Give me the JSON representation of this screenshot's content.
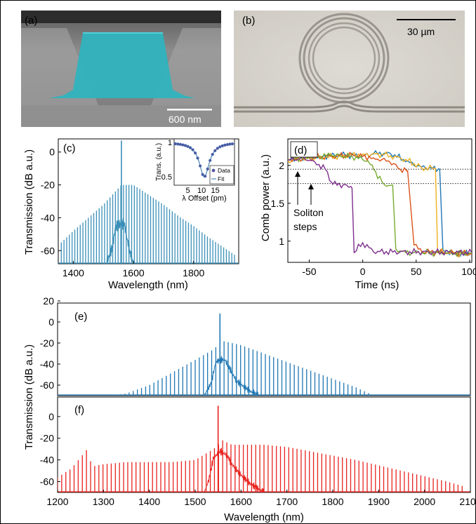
{
  "panels": {
    "a": {
      "letter": "(a)",
      "scalebar": "600 nm"
    },
    "b": {
      "letter": "(b)",
      "scalebar": "30 µm"
    },
    "c": {
      "letter": "(c)"
    },
    "d": {
      "letter": "(d)",
      "annotation": "Soliton\nsteps"
    },
    "e": {
      "letter": "(e)"
    },
    "f": {
      "letter": "(f)"
    }
  },
  "colors": {
    "teal": "#3a8fb8",
    "red": "#e8231f",
    "blue": "#1f77b4",
    "orange": "#d9541a",
    "yellow": "#edb120",
    "purple": "#7e2f8e",
    "green": "#77ac30",
    "cyan": "#1fb5c4"
  },
  "chart_data": [
    {
      "type": "line",
      "panel": "c",
      "xlabel": "Wavelength (nm)",
      "ylabel": "Transmission (dB a.u.)",
      "xlim": [
        1350,
        1950
      ],
      "ylim": [
        -68,
        8
      ],
      "xticks": [
        1400,
        1600,
        1800
      ],
      "yticks": [
        0,
        -20,
        -40,
        -60
      ],
      "comb": {
        "start": 1360,
        "end": 1940,
        "spacing": 9,
        "pump": 1560,
        "pump_peak": 7,
        "floor": -68
      },
      "envelope": [
        [
          1360,
          -55
        ],
        [
          1400,
          -48
        ],
        [
          1450,
          -40
        ],
        [
          1500,
          -32
        ],
        [
          1540,
          -24
        ],
        [
          1560,
          -20
        ],
        [
          1600,
          -20
        ],
        [
          1650,
          -26
        ],
        [
          1700,
          -32
        ],
        [
          1750,
          -39
        ],
        [
          1800,
          -45
        ],
        [
          1850,
          -52
        ],
        [
          1900,
          -58
        ],
        [
          1940,
          -63
        ]
      ],
      "pump_region": [
        [
          1510,
          -68
        ],
        [
          1530,
          -58
        ],
        [
          1540,
          -46
        ],
        [
          1550,
          -44
        ],
        [
          1570,
          -44
        ],
        [
          1580,
          -54
        ],
        [
          1590,
          -62
        ],
        [
          1600,
          -68
        ]
      ],
      "inset": {
        "xlabel": "λ Offset (pm)",
        "ylabel": "Trans. (a.u.)",
        "xlim": [
          0,
          22
        ],
        "ylim": [
          0.38,
          1.05
        ],
        "xticks": [
          5,
          10,
          15
        ],
        "yticks": [
          1,
          0.5
        ],
        "legend": [
          "Data",
          "Fit"
        ],
        "dip_center": 11,
        "dip_depth": 0.5,
        "dip_width": 2.2
      }
    },
    {
      "type": "line",
      "panel": "d",
      "xlabel": "Time (ns)",
      "ylabel": "Comb power (a.u.)",
      "xlim": [
        -70,
        102
      ],
      "ylim": [
        0.72,
        2.35
      ],
      "xticks": [
        -50,
        0,
        50,
        100
      ],
      "yticks": [
        2,
        1.5,
        1
      ],
      "hlines": [
        1.95,
        1.76
      ],
      "series": [
        {
          "color": "blue",
          "points": [
            [
              -70,
              2.08
            ],
            [
              -60,
              2.1
            ],
            [
              -40,
              2.12
            ],
            [
              -20,
              2.14
            ],
            [
              0,
              2.12
            ],
            [
              10,
              2.15
            ],
            [
              20,
              2.16
            ],
            [
              30,
              2.14
            ],
            [
              40,
              2.05
            ],
            [
              55,
              1.98
            ],
            [
              65,
              1.96
            ],
            [
              72,
              1.95
            ],
            [
              75,
              0.88
            ],
            [
              85,
              0.84
            ],
            [
              102,
              0.83
            ]
          ]
        },
        {
          "color": "yellow",
          "points": [
            [
              -70,
              2.06
            ],
            [
              -50,
              2.1
            ],
            [
              -20,
              2.12
            ],
            [
              0,
              2.15
            ],
            [
              20,
              2.14
            ],
            [
              40,
              2.08
            ],
            [
              55,
              1.97
            ],
            [
              68,
              1.96
            ],
            [
              70,
              0.87
            ],
            [
              80,
              0.84
            ],
            [
              102,
              0.83
            ]
          ]
        },
        {
          "color": "orange",
          "points": [
            [
              -70,
              2.07
            ],
            [
              -50,
              2.1
            ],
            [
              -30,
              2.12
            ],
            [
              -10,
              2.14
            ],
            [
              10,
              2.1
            ],
            [
              25,
              2.05
            ],
            [
              35,
              1.95
            ],
            [
              42,
              1.93
            ],
            [
              48,
              0.95
            ],
            [
              55,
              0.86
            ],
            [
              102,
              0.84
            ]
          ]
        },
        {
          "color": "green",
          "points": [
            [
              -70,
              2.08
            ],
            [
              -50,
              2.11
            ],
            [
              -30,
              2.13
            ],
            [
              -10,
              2.12
            ],
            [
              5,
              2.06
            ],
            [
              10,
              1.95
            ],
            [
              20,
              1.75
            ],
            [
              28,
              1.74
            ],
            [
              31,
              0.9
            ],
            [
              40,
              0.85
            ],
            [
              102,
              0.84
            ]
          ]
        },
        {
          "color": "purple",
          "points": [
            [
              -70,
              2.07
            ],
            [
              -55,
              2.1
            ],
            [
              -45,
              2.05
            ],
            [
              -35,
              1.95
            ],
            [
              -28,
              1.75
            ],
            [
              -15,
              1.74
            ],
            [
              -10,
              1.7
            ],
            [
              -8,
              0.85
            ],
            [
              0,
              0.98
            ],
            [
              10,
              0.86
            ],
            [
              102,
              0.85
            ]
          ]
        }
      ]
    },
    {
      "type": "line",
      "panel": "e",
      "xlim": [
        1200,
        2100
      ],
      "ylim": [
        -70,
        18
      ],
      "yticks": [
        20,
        0,
        -20,
        -40,
        -60
      ],
      "comb": {
        "start": 1320,
        "end": 1880,
        "spacing": 9,
        "pump": 1554,
        "pump_peak": 8,
        "floor": -70
      },
      "envelope": [
        [
          1320,
          -70
        ],
        [
          1350,
          -68
        ],
        [
          1400,
          -60
        ],
        [
          1450,
          -48
        ],
        [
          1500,
          -36
        ],
        [
          1540,
          -26
        ],
        [
          1560,
          -18
        ],
        [
          1600,
          -22
        ],
        [
          1650,
          -30
        ],
        [
          1700,
          -38
        ],
        [
          1750,
          -46
        ],
        [
          1800,
          -54
        ],
        [
          1850,
          -62
        ],
        [
          1880,
          -68
        ]
      ],
      "pump_region": [
        [
          1520,
          -70
        ],
        [
          1535,
          -58
        ],
        [
          1545,
          -38
        ],
        [
          1555,
          -36
        ],
        [
          1565,
          -36
        ],
        [
          1575,
          -44
        ],
        [
          1590,
          -56
        ],
        [
          1620,
          -66
        ],
        [
          1640,
          -70
        ]
      ]
    },
    {
      "type": "line",
      "panel": "f",
      "xlabel": "Wavelength (nm)",
      "ylabel": "Transmission (dB a.u.)",
      "xlim": [
        1200,
        2100
      ],
      "ylim": [
        -70,
        18
      ],
      "xticks": [
        1200,
        1300,
        1400,
        1500,
        1600,
        1700,
        1800,
        1900,
        2000,
        2100
      ],
      "yticks": [
        0,
        -20,
        -40,
        -60
      ],
      "comb": {
        "start": 1200,
        "end": 2090,
        "spacing": 9,
        "pump": 1550,
        "pump_peak": 10,
        "floor": -70
      },
      "envelope": [
        [
          1200,
          -56
        ],
        [
          1230,
          -48
        ],
        [
          1265,
          -30
        ],
        [
          1275,
          -46
        ],
        [
          1300,
          -44
        ],
        [
          1350,
          -42
        ],
        [
          1400,
          -42
        ],
        [
          1450,
          -42
        ],
        [
          1500,
          -40
        ],
        [
          1540,
          -30
        ],
        [
          1560,
          -22
        ],
        [
          1580,
          -26
        ],
        [
          1600,
          -26
        ],
        [
          1650,
          -26
        ],
        [
          1700,
          -28
        ],
        [
          1750,
          -32
        ],
        [
          1800,
          -36
        ],
        [
          1850,
          -40
        ],
        [
          1900,
          -45
        ],
        [
          1950,
          -50
        ],
        [
          2000,
          -55
        ],
        [
          2050,
          -60
        ],
        [
          2090,
          -65
        ]
      ],
      "pump_region": [
        [
          1520,
          -70
        ],
        [
          1530,
          -58
        ],
        [
          1540,
          -38
        ],
        [
          1555,
          -32
        ],
        [
          1570,
          -36
        ],
        [
          1580,
          -44
        ],
        [
          1600,
          -54
        ],
        [
          1620,
          -62
        ],
        [
          1650,
          -70
        ]
      ]
    }
  ]
}
